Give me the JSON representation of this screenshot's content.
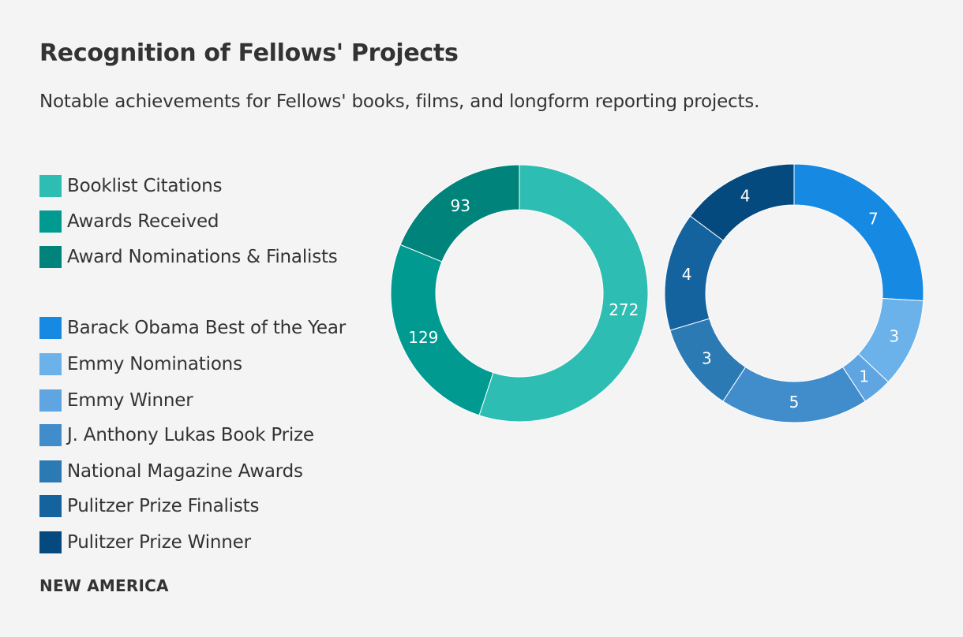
{
  "title": "Recognition of Fellows' Projects",
  "subtitle": "Notable achievements for Fellows' books, films, and longform reporting projects.",
  "source": "NEW AMERICA",
  "legend": [
    {
      "label": "Booklist Citations",
      "color": "#2ebdb3"
    },
    {
      "label": "Awards Received",
      "color": "#009a91"
    },
    {
      "label": "Award Nominations & Finalists",
      "color": "#00837a"
    },
    {
      "label": "Barack Obama Best of the Year",
      "color": "#1689e3"
    },
    {
      "label": "Emmy Nominations",
      "color": "#6bb2ea"
    },
    {
      "label": "Emmy Winner",
      "color": "#5fa5e2"
    },
    {
      "label": "J. Anthony Lukas Book Prize",
      "color": "#418dcb"
    },
    {
      "label": "National Magazine Awards",
      "color": "#2c7ab4"
    },
    {
      "label": "Pulitzer Prize Finalists",
      "color": "#14639f"
    },
    {
      "label": "Pulitzer Prize Winner",
      "color": "#054a7e"
    }
  ],
  "chart_data": [
    {
      "type": "pie",
      "donut": true,
      "categories": [
        "Booklist Citations",
        "Awards Received",
        "Award Nominations & Finalists"
      ],
      "values": [
        272,
        129,
        93
      ],
      "colors": [
        "#2ebdb3",
        "#009a91",
        "#00837a"
      ],
      "start": "top",
      "direction": "clockwise"
    },
    {
      "type": "pie",
      "donut": true,
      "categories": [
        "Barack Obama Best of the Year",
        "Emmy Nominations",
        "Emmy Winner",
        "J. Anthony Lukas Book Prize",
        "National Magazine Awards",
        "Pulitzer Prize Finalists",
        "Pulitzer Prize Winner"
      ],
      "values": [
        7,
        3,
        1,
        5,
        3,
        4,
        4
      ],
      "colors": [
        "#1689e3",
        "#6bb2ea",
        "#5fa5e2",
        "#418dcb",
        "#2c7ab4",
        "#14639f",
        "#054a7e"
      ],
      "start": "top",
      "direction": "clockwise"
    }
  ]
}
